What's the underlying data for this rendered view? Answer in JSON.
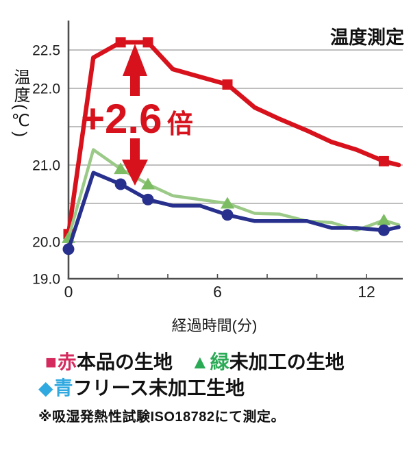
{
  "title": "温度測定",
  "axes": {
    "y_label": "温度(℃)",
    "x_label": "経過時間(分)",
    "y_ticks": [
      {
        "v": 22.5,
        "label": "22.5"
      },
      {
        "v": 22.0,
        "label": "22.0"
      },
      {
        "v": 21.0,
        "label": "21.0"
      },
      {
        "v": 20.0,
        "label": "20.0"
      },
      {
        "v": 19.0,
        "label": "19.0"
      }
    ],
    "y_grid": [
      22.5,
      22.0,
      21.5,
      21.0,
      20.5,
      20.0
    ],
    "x_ticks": [
      {
        "v": 0,
        "label": "0"
      },
      {
        "v": 6,
        "label": "6"
      },
      {
        "v": 12,
        "label": "12"
      }
    ],
    "x_tick_marks": [
      0,
      2,
      4,
      6,
      8,
      10,
      12
    ]
  },
  "chart_data": {
    "type": "line",
    "title": "温度測定",
    "xlabel": "経過時間(分)",
    "ylabel": "温度(℃)",
    "xlim": [
      0,
      13.5
    ],
    "ylim": [
      19.0,
      22.8
    ],
    "grid": "horizontal every 0.5°C from 20.0 to 22.5, axis compressed below 20.0",
    "legend_position": "below chart",
    "x": [
      0,
      1,
      2.1,
      3.2,
      4.2,
      5.3,
      6.4,
      7.5,
      8.5,
      9.6,
      10.6,
      11.6,
      12.7,
      13.3
    ],
    "marker_indices": [
      0,
      2,
      3,
      6,
      12
    ],
    "series": [
      {
        "name": "本品の生地",
        "color": "#d8121c",
        "marker": "square",
        "marker_color": "#d8121c",
        "values": [
          20.1,
          22.4,
          22.6,
          22.6,
          22.25,
          22.15,
          22.05,
          21.75,
          21.6,
          21.45,
          21.3,
          21.2,
          21.05,
          21.0
        ]
      },
      {
        "name": "未加工の生地",
        "color": "#9bc987",
        "marker": "triangle",
        "marker_color": "#7cbd63",
        "values": [
          20.05,
          21.2,
          20.95,
          20.75,
          20.6,
          20.55,
          20.5,
          20.37,
          20.36,
          20.27,
          20.25,
          20.15,
          20.28,
          20.22
        ]
      },
      {
        "name": "フリース未加工生地",
        "color": "#28308d",
        "marker": "circle",
        "marker_color": "#28308d",
        "values": [
          19.8,
          20.9,
          20.75,
          20.55,
          20.47,
          20.47,
          20.35,
          20.27,
          20.27,
          20.27,
          20.18,
          20.18,
          20.15,
          20.19
        ]
      }
    ]
  },
  "annotation": {
    "value": "+2.6",
    "suffix": "倍",
    "color": "#d8121c"
  },
  "legend": {
    "items": [
      {
        "marker": "■",
        "color_word": "赤",
        "label": "本品の生地",
        "color": "#d52a5e"
      },
      {
        "marker": "▲",
        "color_word": "緑",
        "label": "未加工の生地",
        "color": "#2baa56"
      },
      {
        "marker": "◆",
        "color_word": "青",
        "label": "フリース未加工生地",
        "color": "#2fa9e0"
      }
    ]
  },
  "note": "※吸湿発熱性試験ISO18782にて測定。",
  "colors": {
    "grid": "#a9a9a9",
    "axis": "#4d4d4d",
    "text": "#1c1c1c"
  }
}
